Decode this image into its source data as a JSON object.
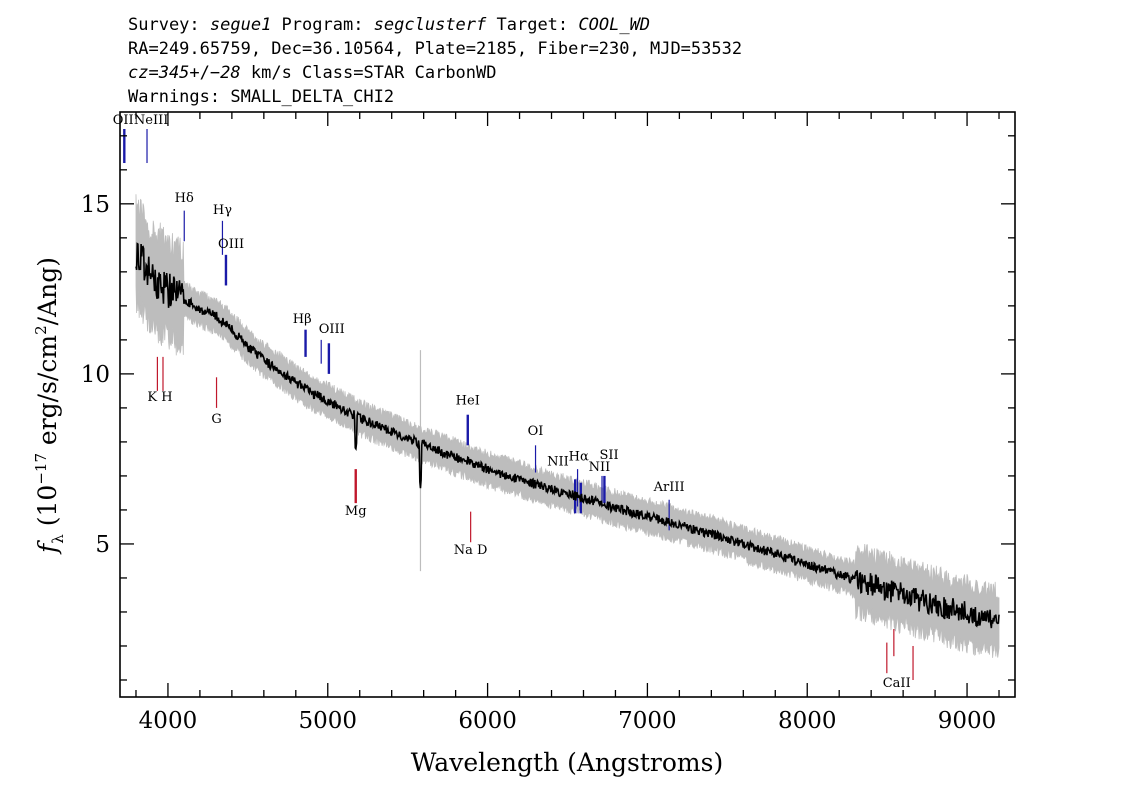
{
  "header": {
    "line1": [
      {
        "text": "Survey: ",
        "italic": false
      },
      {
        "text": "segue1",
        "italic": true
      },
      {
        "text": " Program: ",
        "italic": false
      },
      {
        "text": "segclusterf",
        "italic": true
      },
      {
        "text": " Target: ",
        "italic": false
      },
      {
        "text": "COOL_WD",
        "italic": true
      }
    ],
    "line2": "RA=249.65759, Dec=36.10564, Plate=2185, Fiber=230, MJD=53532",
    "line3": [
      {
        "text": "cz=345",
        "italic": true
      },
      {
        "text": "+/−",
        "italic": false
      },
      {
        "text": "28",
        "italic": true
      },
      {
        "text": " km/s Class=STAR CarbonWD",
        "italic": false
      }
    ],
    "line4": "Warnings: SMALL_DELTA_CHI2"
  },
  "chart_data": {
    "type": "line",
    "xlabel": "Wavelength (Angstroms)",
    "ylabel": "f_λ (10^-17 erg/s/cm^2/Ang)",
    "ylabel_parts": {
      "f": "f",
      "lambda": "λ",
      "pre": " (10",
      "exp1": "−17",
      "mid": " erg/s/cm",
      "exp2": "2",
      "post": "/Ang)"
    },
    "xlim": [
      3700,
      9300
    ],
    "ylim": [
      0.5,
      17.7
    ],
    "xticks": [
      4000,
      5000,
      6000,
      7000,
      8000,
      9000
    ],
    "yticks": [
      5,
      10,
      15
    ],
    "xminor_step": 200,
    "yminor_step": 1,
    "colors": {
      "flux": "#000000",
      "error_band": "#bdbdbd",
      "emission": "#1a1aa8",
      "absorption": "#c0182c"
    },
    "flux_anchor_points": [
      [
        3800,
        13.6
      ],
      [
        3850,
        13.2
      ],
      [
        3900,
        12.8
      ],
      [
        4000,
        12.5
      ],
      [
        4100,
        12.2
      ],
      [
        4200,
        11.9
      ],
      [
        4300,
        11.7
      ],
      [
        4400,
        11.3
      ],
      [
        4500,
        10.8
      ],
      [
        4600,
        10.4
      ],
      [
        4700,
        10.1
      ],
      [
        4800,
        9.75
      ],
      [
        4900,
        9.45
      ],
      [
        5000,
        9.2
      ],
      [
        5100,
        8.95
      ],
      [
        5200,
        8.7
      ],
      [
        5300,
        8.5
      ],
      [
        5400,
        8.3
      ],
      [
        5500,
        8.1
      ],
      [
        5600,
        7.92
      ],
      [
        5800,
        7.55
      ],
      [
        6000,
        7.2
      ],
      [
        6200,
        6.9
      ],
      [
        6400,
        6.6
      ],
      [
        6600,
        6.35
      ],
      [
        6800,
        6.05
      ],
      [
        7000,
        5.8
      ],
      [
        7200,
        5.55
      ],
      [
        7400,
        5.3
      ],
      [
        7600,
        5.0
      ],
      [
        7800,
        4.7
      ],
      [
        8000,
        4.4
      ],
      [
        8200,
        4.1
      ],
      [
        8400,
        3.8
      ],
      [
        8600,
        3.5
      ],
      [
        8800,
        3.2
      ],
      [
        9000,
        2.95
      ],
      [
        9200,
        2.7
      ]
    ],
    "emission_lines": [
      {
        "label": "OII",
        "wavelength": 3727,
        "y1": 16.2,
        "y2": 17.2,
        "thick": true
      },
      {
        "label": "NeIII",
        "wavelength": 3869,
        "y1": 16.2,
        "y2": 17.2,
        "thick": false
      },
      {
        "label": "Hδ",
        "wavelength": 4102,
        "y1": 13.9,
        "y2": 14.8,
        "thick": false
      },
      {
        "label": "Hγ",
        "wavelength": 4341,
        "y1": 13.5,
        "y2": 14.5,
        "thick": false
      },
      {
        "label": "OIII",
        "wavelength": 4363,
        "y1": 12.6,
        "y2": 13.5,
        "thick": true
      },
      {
        "label": "Hβ",
        "wavelength": 4861,
        "y1": 10.5,
        "y2": 11.3,
        "thick": true
      },
      {
        "label": "OIII",
        "wavelength": 4959,
        "y1": 10.3,
        "y2": 11.0,
        "thick": false
      },
      {
        "label": "OIII",
        "wavelength": 5007,
        "y1": 10.0,
        "y2": 10.9,
        "thick": true
      },
      {
        "label": "HeI",
        "wavelength": 5876,
        "y1": 7.9,
        "y2": 8.8,
        "thick": true
      },
      {
        "label": "OI",
        "wavelength": 6300,
        "y1": 7.1,
        "y2": 7.9,
        "thick": false
      },
      {
        "label": "NII",
        "wavelength": 6548,
        "y1": 5.9,
        "y2": 6.9,
        "thick": true
      },
      {
        "label": "Hα",
        "wavelength": 6563,
        "y1": 6.1,
        "y2": 7.2,
        "thick": false
      },
      {
        "label": "NII",
        "wavelength": 6583,
        "y1": 5.9,
        "y2": 6.8,
        "thick": true
      },
      {
        "label": "SII",
        "wavelength": 6716,
        "y1": 6.2,
        "y2": 7.0,
        "thick": false
      },
      {
        "label": "SII",
        "wavelength": 6731,
        "y1": 6.2,
        "y2": 7.0,
        "thick": true
      },
      {
        "label": "ArIII",
        "wavelength": 7136,
        "y1": 5.4,
        "y2": 6.3,
        "thick": false
      }
    ],
    "absorption_lines": [
      {
        "label": "K",
        "wavelength": 3934,
        "y1": 9.5,
        "y2": 10.5,
        "thick": false
      },
      {
        "label": "H",
        "wavelength": 3969,
        "y1": 9.5,
        "y2": 10.5,
        "thick": false
      },
      {
        "label": "G",
        "wavelength": 4304,
        "y1": 9.0,
        "y2": 9.9,
        "thick": false
      },
      {
        "label": "Mg",
        "wavelength": 5175,
        "y1": 6.2,
        "y2": 7.2,
        "thick": true
      },
      {
        "label": "Na D",
        "wavelength": 5894,
        "y1": 5.05,
        "y2": 5.95,
        "thick": false
      },
      {
        "label": "CaII",
        "wavelength": 8498,
        "y1": 1.2,
        "y2": 2.1,
        "thick": false
      },
      {
        "label": "CaII",
        "wavelength": 8542,
        "y1": 1.7,
        "y2": 2.5,
        "thick": false
      },
      {
        "label": "CaII",
        "wavelength": 8662,
        "y1": 1.0,
        "y2": 2.0,
        "thick": false
      }
    ],
    "line_labels": [
      {
        "text": "OII",
        "x": 3720,
        "y": 17.35
      },
      {
        "text": "NeIII",
        "x": 3895,
        "y": 17.35
      },
      {
        "text": "Hδ",
        "x": 4102,
        "y": 15.05
      },
      {
        "text": "Hγ",
        "x": 4341,
        "y": 14.7
      },
      {
        "text": "OIII",
        "x": 4395,
        "y": 13.7
      },
      {
        "text": "Hβ",
        "x": 4840,
        "y": 11.5
      },
      {
        "text": "OIII",
        "x": 5025,
        "y": 11.2
      },
      {
        "text": "K H",
        "x": 3950,
        "y": 9.2
      },
      {
        "text": "G",
        "x": 4304,
        "y": 8.55
      },
      {
        "text": "HeI",
        "x": 5876,
        "y": 9.1
      },
      {
        "text": "OI",
        "x": 6300,
        "y": 8.2
      },
      {
        "text": "NII",
        "x": 6440,
        "y": 7.3
      },
      {
        "text": "Hα",
        "x": 6570,
        "y": 7.45
      },
      {
        "text": "NII",
        "x": 6700,
        "y": 7.15
      },
      {
        "text": "SII",
        "x": 6760,
        "y": 7.5
      },
      {
        "text": "ArIII",
        "x": 7136,
        "y": 6.55
      },
      {
        "text": "Mg",
        "x": 5175,
        "y": 5.85
      },
      {
        "text": "Na  D",
        "x": 5894,
        "y": 4.7
      },
      {
        "text": "CaII",
        "x": 8560,
        "y": 0.8
      }
    ]
  }
}
